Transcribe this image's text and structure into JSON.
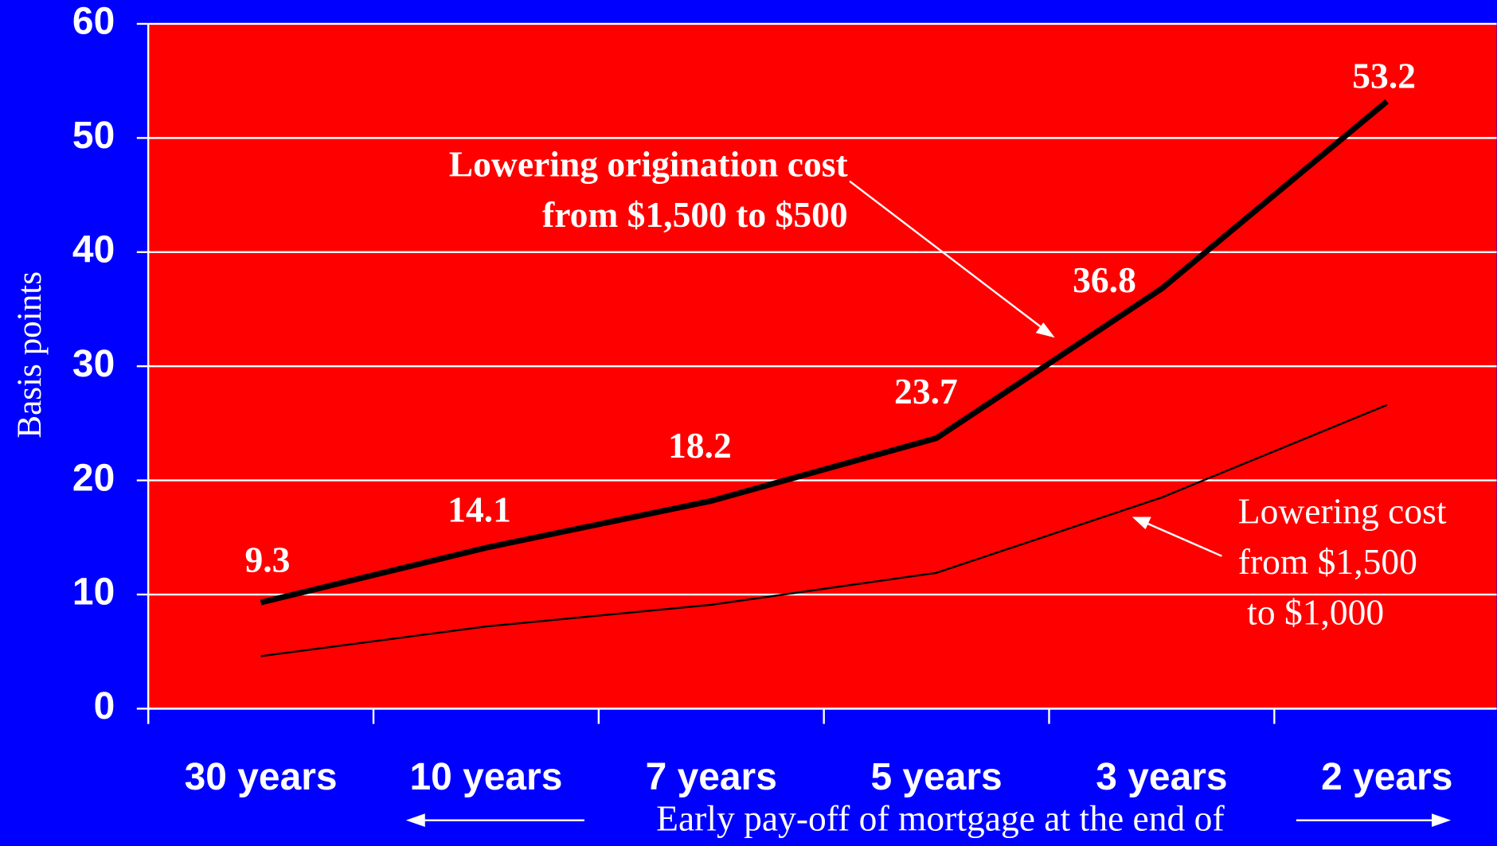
{
  "chart_data": {
    "type": "line",
    "categories": [
      "30 years",
      "10 years",
      "7 years",
      "5 years",
      "3 years",
      "2 years"
    ],
    "series": [
      {
        "color": "#000000",
        "values": [
          9.3,
          14.1,
          18.2,
          23.7,
          36.8,
          53.2
        ],
        "data_labels": true
      },
      {
        "color": "#000000",
        "values": [
          4.6,
          7.2,
          9.1,
          11.9,
          18.5,
          26.6
        ]
      }
    ],
    "ylim": [
      0,
      60
    ],
    "yticks": [
      0,
      10,
      20,
      30,
      40,
      50,
      60
    ],
    "grid": true,
    "y_axis_label": "Basis points",
    "x_axis_label": "Early pay-off of mortgage at the end of",
    "annotations": [
      {
        "lines": [
          "Lowering origination cost",
          "from $1,500 to $500"
        ]
      },
      {
        "lines": [
          "Lowering cost",
          "from $1,500",
          " to $1,000"
        ]
      }
    ]
  }
}
